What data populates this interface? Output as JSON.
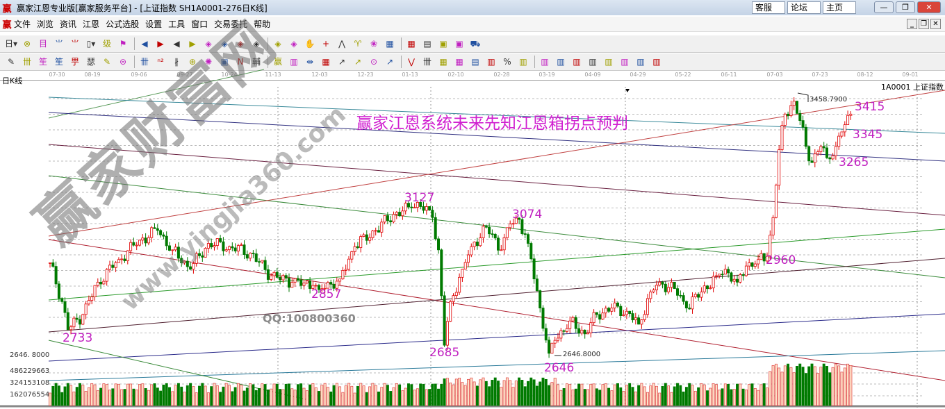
{
  "window": {
    "title": "赢家江恩专业版[赢家服务平台] - [上证指数  SH1A0001-276日K线]",
    "logo": "赢",
    "links": [
      "客服",
      "论坛",
      "主页"
    ],
    "buttons": [
      "—",
      "❐",
      "✕"
    ]
  },
  "menu": {
    "items": [
      "文件",
      "浏览",
      "资讯",
      "江恩",
      "公式选股",
      "设置",
      "工具",
      "窗口",
      "交易委托",
      "帮助"
    ],
    "mdi_buttons": [
      "_",
      "❐",
      "✕"
    ]
  },
  "toolbar1": [
    "日▾",
    "⊗",
    "目",
    "⺌",
    "⺌",
    "▯▾",
    "级",
    "⚑",
    "◀",
    "▶",
    "◀",
    "▶",
    "◈",
    "◈",
    "◈",
    "◈",
    "◈",
    "◈",
    "✋",
    "+",
    "⋀",
    "♈",
    "❀",
    "▦",
    "▦",
    "▤",
    "▣",
    "▣",
    "⛟"
  ],
  "toolbar2": [
    "✎",
    "卌",
    "笙",
    "笙",
    "甼",
    "瑟",
    "✎",
    "⊜",
    "卌",
    "ⁿ²",
    "∦",
    "⊕",
    "✺",
    "▣",
    "N",
    "輔",
    "赢",
    "▥",
    "⇹",
    "▦",
    "↗",
    "↗",
    "⊙",
    "↗",
    "⋁",
    "卌",
    "▦",
    "▦",
    "▤",
    "▥",
    "%",
    "▥",
    "▥",
    "▥",
    "▥",
    "▥",
    "▥",
    "▥",
    "▥",
    "▥"
  ],
  "chart": {
    "period_label": "日K线",
    "symbol": "1A0001  上证指数",
    "headline": "赢家江恩系统未来先知江恩箱拐点预判",
    "watermark": "赢家财富网",
    "watermark_url": "www.yingjia360.com",
    "qq": "QQ:100800360",
    "dates": [
      "07-30",
      "08-19",
      "09-06",
      "09-27",
      "10-24",
      "11-13",
      "12-03",
      "12-23",
      "01-13",
      "02-10",
      "02-28",
      "03-19",
      "04-09",
      "04-29",
      "05-22",
      "06-11",
      "07-03",
      "07-23",
      "08-12",
      "09-01"
    ],
    "annotations": [
      "2733",
      "2857",
      "3127",
      "2685",
      "3074",
      "2646",
      "2960",
      "3415",
      "3345",
      "3265"
    ],
    "high_label": "3458.7900",
    "low_label": "2646.8000",
    "axis_low": "2646. 8000",
    "volume_ticks": [
      "486229663",
      "324153108",
      "162076554"
    ],
    "colors": {
      "up": "#e00000",
      "down": "#007a00",
      "annotation": "#c020c0",
      "headline": "#d020d0"
    }
  },
  "chart_data": {
    "type": "candlestick",
    "title": "赢家江恩系统未来先知江恩箱拐点预判",
    "ylim": [
      2620,
      3480
    ],
    "key_points": [
      [
        0,
        2940
      ],
      [
        4,
        2820
      ],
      [
        6,
        2733
      ],
      [
        11,
        2780
      ],
      [
        16,
        2880
      ],
      [
        23,
        2950
      ],
      [
        30,
        3010
      ],
      [
        36,
        3040
      ],
      [
        41,
        2980
      ],
      [
        47,
        2920
      ],
      [
        53,
        3000
      ],
      [
        60,
        2990
      ],
      [
        67,
        2970
      ],
      [
        74,
        2900
      ],
      [
        81,
        2880
      ],
      [
        88,
        2870
      ],
      [
        90,
        2857
      ],
      [
        97,
        2890
      ],
      [
        102,
        2990
      ],
      [
        109,
        3040
      ],
      [
        115,
        3090
      ],
      [
        121,
        3110
      ],
      [
        123,
        3127
      ],
      [
        128,
        3080
      ],
      [
        130,
        2980
      ],
      [
        132,
        2685
      ],
      [
        134,
        2820
      ],
      [
        138,
        2920
      ],
      [
        141,
        2990
      ],
      [
        146,
        3050
      ],
      [
        151,
        2980
      ],
      [
        154,
        3060
      ],
      [
        157,
        3074
      ],
      [
        160,
        3000
      ],
      [
        164,
        2800
      ],
      [
        167,
        2660
      ],
      [
        169,
        2700
      ],
      [
        174,
        2760
      ],
      [
        179,
        2720
      ],
      [
        183,
        2780
      ],
      [
        188,
        2800
      ],
      [
        193,
        2790
      ],
      [
        197,
        2750
      ],
      [
        201,
        2850
      ],
      [
        204,
        2880
      ],
      [
        209,
        2860
      ],
      [
        213,
        2800
      ],
      [
        218,
        2850
      ],
      [
        223,
        2900
      ],
      [
        226,
        2920
      ],
      [
        230,
        2880
      ],
      [
        233,
        2930
      ],
      [
        237,
        2950
      ],
      [
        240,
        2960
      ],
      [
        242,
        3080
      ],
      [
        243,
        3180
      ],
      [
        244,
        3290
      ],
      [
        246,
        3400
      ],
      [
        249,
        3440
      ],
      [
        251,
        3380
      ],
      [
        253,
        3300
      ],
      [
        255,
        3250
      ],
      [
        258,
        3300
      ],
      [
        260,
        3265
      ],
      [
        263,
        3300
      ],
      [
        265,
        3345
      ],
      [
        268,
        3400
      ]
    ],
    "high": 3458.79,
    "low": 2646.8
  }
}
